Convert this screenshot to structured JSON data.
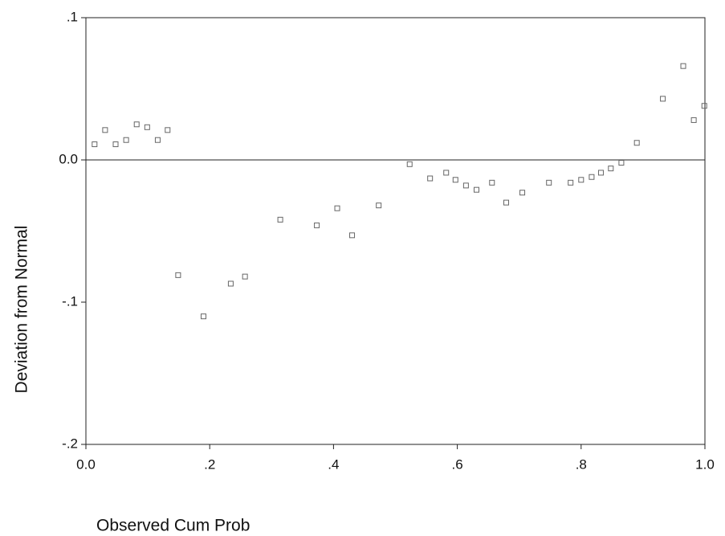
{
  "chart_data": {
    "type": "scatter",
    "xlabel": "Observed Cum Prob",
    "ylabel": "Deviation from Normal",
    "x": [
      0.014,
      0.031,
      0.048,
      0.065,
      0.082,
      0.099,
      0.116,
      0.132,
      0.149,
      0.19,
      0.234,
      0.257,
      0.314,
      0.373,
      0.406,
      0.43,
      0.473,
      0.523,
      0.556,
      0.582,
      0.597,
      0.614,
      0.631,
      0.656,
      0.679,
      0.705,
      0.748,
      0.783,
      0.8,
      0.817,
      0.832,
      0.848,
      0.865,
      0.89,
      0.932,
      0.965,
      0.982,
      0.999
    ],
    "values": [
      0.011,
      0.021,
      0.011,
      0.014,
      0.025,
      0.023,
      0.014,
      0.021,
      -0.081,
      -0.11,
      -0.087,
      -0.082,
      -0.042,
      -0.046,
      -0.034,
      -0.053,
      -0.032,
      -0.003,
      -0.013,
      -0.009,
      -0.014,
      -0.018,
      -0.021,
      -0.016,
      -0.03,
      -0.023,
      -0.016,
      -0.016,
      -0.014,
      -0.012,
      -0.009,
      -0.006,
      -0.002,
      0.012,
      0.043,
      0.066,
      0.028,
      0.038
    ],
    "color": "#666666",
    "xlim": [
      0,
      1
    ],
    "ylim": [
      -0.2,
      0.1
    ],
    "xticks": [
      {
        "value": 0,
        "label": "0.0"
      },
      {
        "value": 0.2,
        "label": ".2"
      },
      {
        "value": 0.4,
        "label": ".4"
      },
      {
        "value": 0.6,
        "label": ".6"
      },
      {
        "value": 0.8,
        "label": ".8"
      },
      {
        "value": 1,
        "label": "1.0"
      }
    ],
    "yticks": [
      {
        "value": -0.2,
        "label": "-.2"
      },
      {
        "value": -0.1,
        "label": "-.1"
      },
      {
        "value": 0,
        "label": "0.0"
      },
      {
        "value": 0.1,
        "label": ".1"
      }
    ],
    "reference_line": 0
  }
}
